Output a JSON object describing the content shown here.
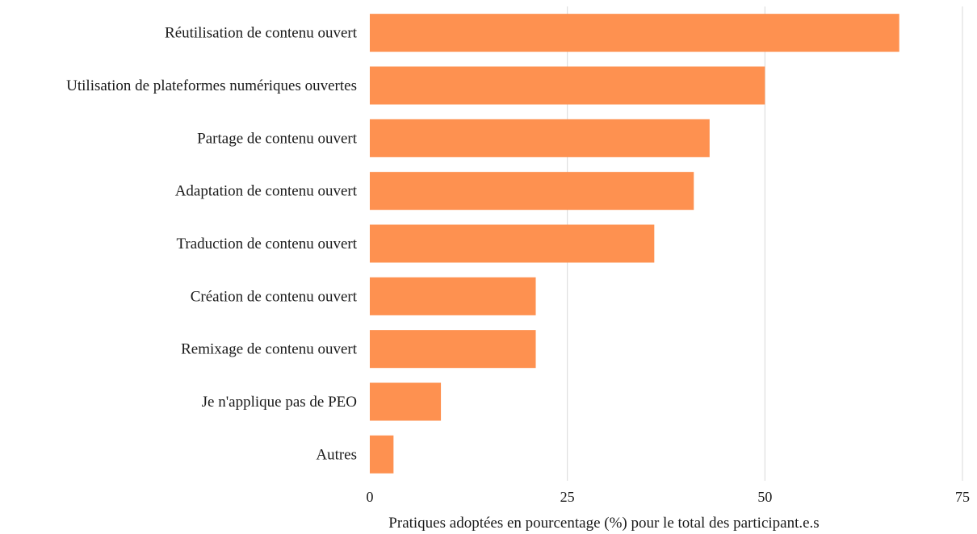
{
  "chart_data": {
    "type": "bar",
    "orientation": "horizontal",
    "categories": [
      "Réutilisation de contenu ouvert",
      "Utilisation de plateformes numériques ouvertes",
      "Partage de contenu ouvert",
      "Adaptation de contenu ouvert",
      "Traduction de contenu ouvert",
      "Création de contenu ouvert",
      "Remixage de contenu ouvert",
      "Je n'applique pas de PEO",
      "Autres"
    ],
    "values": [
      67,
      50,
      43,
      41,
      36,
      21,
      21,
      9,
      3
    ],
    "xlabel": "Pratiques adoptées en pourcentage (%) pour le total des participant.e.s",
    "ylabel": "",
    "xlim": [
      0,
      75
    ],
    "xticks": [
      "0",
      "25",
      "50",
      "75"
    ],
    "grid": "vertical",
    "legend": "none",
    "bar_color": "#fe9150"
  }
}
